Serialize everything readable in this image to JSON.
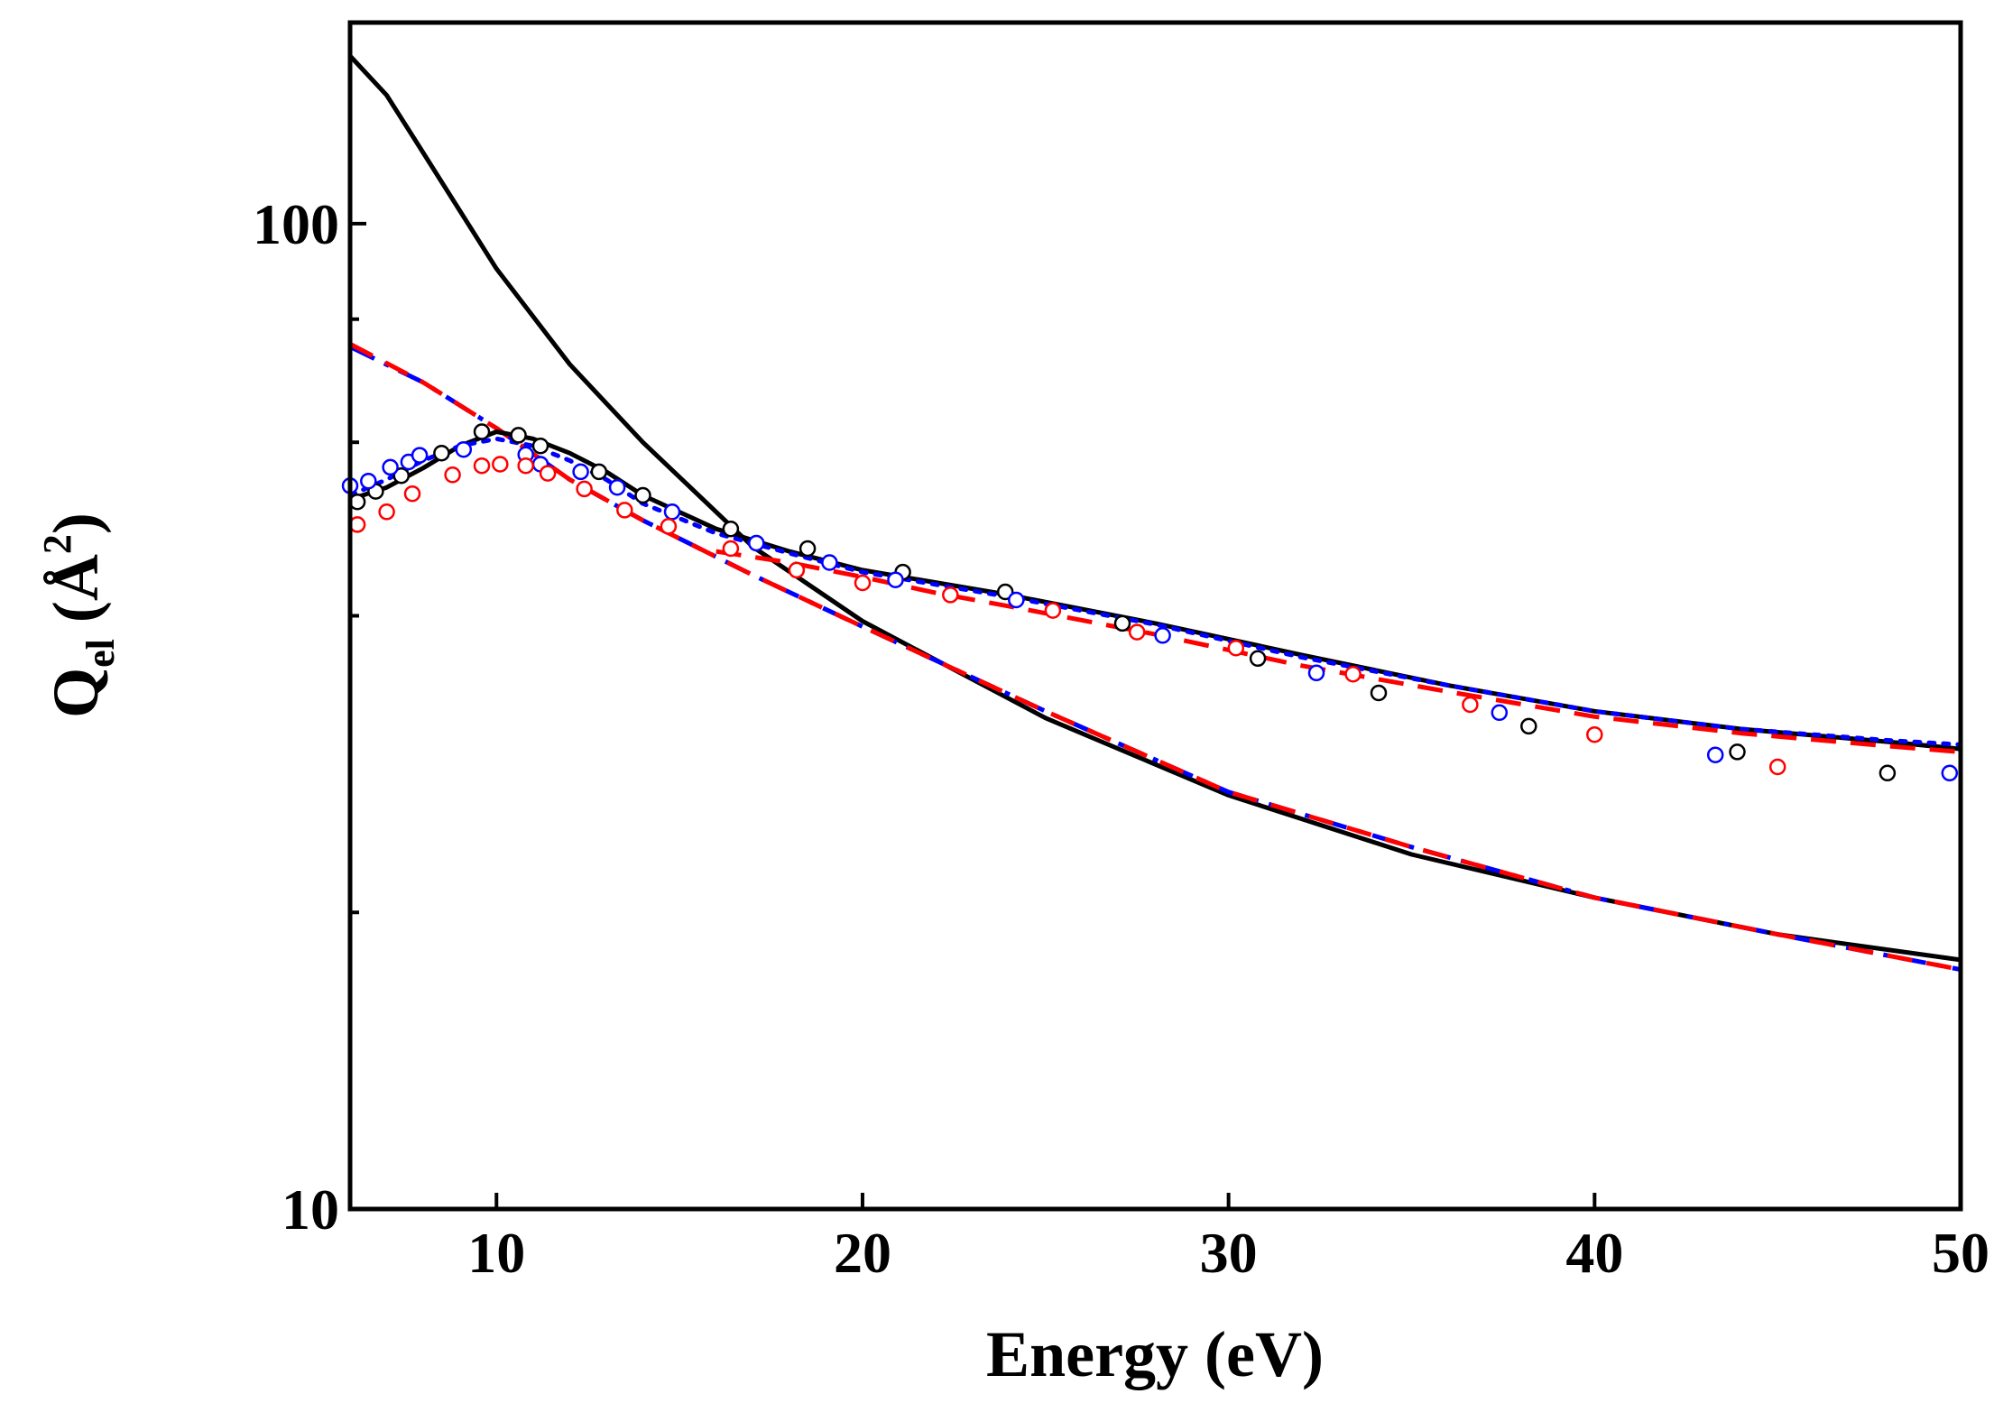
{
  "chart_data": {
    "type": "line",
    "title": "",
    "xlabel": "Energy (eV)",
    "ylabel": {
      "main": "Q",
      "sub": "el",
      "unit_open": " (Å",
      "sup": "2",
      "unit_close": ")"
    },
    "xlim": [
      6,
      50
    ],
    "ylim": [
      10,
      160
    ],
    "yscale": "log",
    "grid": false,
    "x_ticks": [
      10,
      20,
      30,
      40,
      50
    ],
    "x_tick_labels": [
      "10",
      "20",
      "30",
      "40",
      "50"
    ],
    "y_ticks": [
      10,
      100
    ],
    "y_tick_labels": [
      "10",
      "100"
    ],
    "y_minor_ticks": [
      20,
      40,
      60,
      80
    ],
    "lines": [
      {
        "name": "upper-solid-black",
        "color": "#000000",
        "style": "solid",
        "x": [
          6,
          7,
          8,
          10,
          12,
          14,
          17,
          20,
          25,
          30,
          35,
          40,
          45,
          50
        ],
        "y": [
          148,
          135,
          118,
          90,
          72,
          60,
          47,
          39.5,
          31.5,
          26.3,
          22.9,
          20.7,
          19,
          17.9
        ]
      },
      {
        "name": "lower-dashdot-blue",
        "color": "#0000ff",
        "style": "dashdot",
        "x": [
          6,
          8,
          10,
          12,
          14,
          17,
          20,
          25,
          30,
          35,
          40,
          45,
          50
        ],
        "y": [
          75,
          69,
          62,
          55,
          50,
          44,
          39,
          32,
          26.5,
          23.3,
          20.7,
          19,
          17.5
        ]
      },
      {
        "name": "lower-dash-red",
        "color": "#ff0000",
        "style": "dash",
        "x": [
          6,
          8,
          10,
          12,
          14,
          17,
          20,
          25,
          30,
          35,
          40,
          45,
          50
        ],
        "y": [
          75.5,
          69,
          62,
          55,
          50,
          44,
          39,
          32,
          26.5,
          23.3,
          20.7,
          19,
          17.5
        ]
      },
      {
        "name": "middle-solid-black",
        "color": "#000000",
        "style": "solid",
        "x": [
          6,
          7,
          8,
          9,
          10,
          11,
          12,
          13,
          14,
          16,
          18,
          20,
          24,
          28,
          32,
          36,
          40,
          44,
          48,
          50
        ],
        "y": [
          52.5,
          54,
          56.5,
          59.5,
          61.5,
          60.5,
          58.5,
          56,
          53,
          49,
          46.5,
          44.5,
          42,
          39.3,
          36.5,
          34,
          32,
          30.7,
          29.8,
          29.3
        ]
      },
      {
        "name": "middle-dot-blue",
        "color": "#0000ff",
        "style": "dot",
        "x": [
          6,
          7,
          8,
          9,
          10,
          11,
          12,
          13,
          14,
          16,
          18,
          20,
          24,
          28,
          32,
          36,
          40,
          44,
          48,
          50
        ],
        "y": [
          53,
          55,
          57.5,
          59.5,
          60.5,
          59.5,
          57.5,
          55,
          52,
          48.5,
          46.3,
          44.3,
          41.8,
          39.2,
          36.3,
          34,
          32,
          30.7,
          29.9,
          29.6
        ]
      },
      {
        "name": "middle-dash-red",
        "color": "#ff0000",
        "style": "dash",
        "x": [
          16,
          18,
          20,
          22,
          24,
          28,
          32,
          36,
          40,
          44,
          48,
          50
        ],
        "y": [
          46.5,
          45.3,
          43.8,
          42.2,
          40.9,
          38.3,
          35.6,
          33.5,
          31.6,
          30.4,
          29.5,
          29.1
        ]
      }
    ],
    "scatter": [
      {
        "name": "black-open-circles",
        "color": "#000000",
        "x": [
          6.2,
          6.7,
          7.4,
          8.5,
          9.6,
          10.6,
          11.2,
          12.8,
          14.0,
          16.4,
          18.5,
          21.1,
          23.9,
          27.1,
          30.8,
          34.1,
          38.2,
          43.9,
          48.0
        ],
        "y": [
          52.2,
          53.5,
          55.5,
          58.5,
          61.5,
          61.0,
          59.5,
          56.0,
          53.0,
          49.0,
          46.8,
          44.3,
          42.3,
          39.3,
          36.2,
          33.4,
          30.9,
          29.1,
          27.7
        ]
      },
      {
        "name": "blue-open-circles",
        "color": "#0000ff",
        "x": [
          6.0,
          6.5,
          7.1,
          7.6,
          7.9,
          9.1,
          10.8,
          11.2,
          12.3,
          13.3,
          14.8,
          17.1,
          19.1,
          20.9,
          24.2,
          28.2,
          32.4,
          37.4,
          43.3,
          49.7
        ],
        "y": [
          54.2,
          54.8,
          56.6,
          57.3,
          58.2,
          59.0,
          58.3,
          57.0,
          56.0,
          54.0,
          51.0,
          47.4,
          45.3,
          43.5,
          41.5,
          38.2,
          35.0,
          31.9,
          28.9,
          27.7
        ]
      },
      {
        "name": "red-open-circles",
        "color": "#ff0000",
        "x": [
          6.2,
          7.0,
          7.7,
          8.8,
          9.6,
          10.1,
          10.8,
          11.4,
          12.4,
          13.5,
          14.7,
          16.4,
          18.2,
          20.0,
          22.4,
          25.2,
          27.5,
          30.2,
          33.4,
          36.6,
          40.0,
          45.0
        ],
        "y": [
          49.5,
          51.0,
          53.2,
          55.6,
          56.8,
          57.0,
          56.8,
          55.8,
          53.8,
          51.2,
          49.3,
          46.8,
          44.5,
          43.2,
          42.0,
          40.5,
          38.5,
          37.1,
          34.9,
          32.5,
          30.3,
          28.1
        ]
      }
    ]
  }
}
